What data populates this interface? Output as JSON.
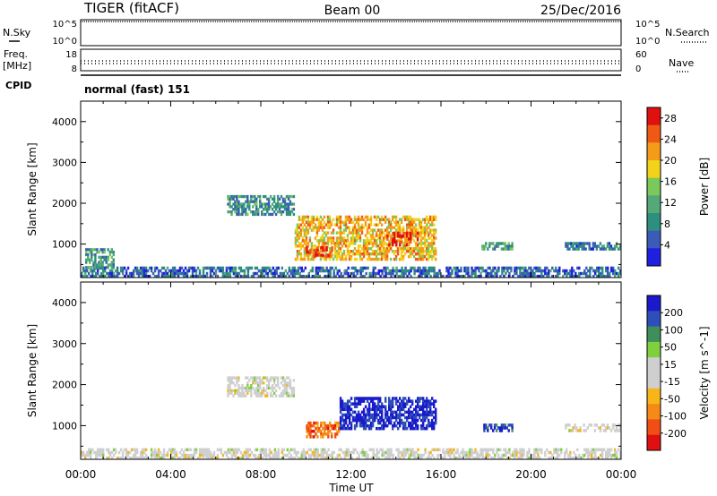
{
  "header": {
    "radar": "TIGER (fitACF)",
    "beam": "Beam 00",
    "date": "25/Dec/2016"
  },
  "side_labels": {
    "nsky": "N.Sky",
    "nsearch": "N.Search",
    "freq": "Freq.",
    "freq_unit": "[MHz]",
    "nave": "Nave",
    "cpid": "CPID",
    "cpid_value": "normal (fast) 151"
  },
  "small_ticks": {
    "noise_left": [
      "10^5",
      "10^0"
    ],
    "noise_right": [
      "10^5",
      "10^0"
    ],
    "freq_left": [
      "18",
      "8"
    ],
    "nave_right": [
      "60",
      "0"
    ]
  },
  "colors": {
    "power_scale": [
      "#1f1fe0",
      "#3b5bb8",
      "#2f8f7f",
      "#55a877",
      "#7bc95a",
      "#f2d21b",
      "#f59b1a",
      "#ee5a16",
      "#e01010"
    ],
    "velocity_scale": [
      "#e01010",
      "#f04e15",
      "#f58a16",
      "#f7b51a",
      "#cfcfcf",
      "#cfcfcf",
      "#7fcf3e",
      "#3f8f5a",
      "#2e4fb8",
      "#1a1acc"
    ]
  },
  "chart_data": [
    {
      "type": "heatmap",
      "name": "Power",
      "ylabel": "Slant Range [km]",
      "xlabel": "",
      "x_ticks": [
        "00:00",
        "04:00",
        "08:00",
        "12:00",
        "16:00",
        "20:00",
        "00:00"
      ],
      "y_ticks": [
        "1000",
        "2000",
        "3000",
        "4000"
      ],
      "xlim_hours": [
        0,
        24
      ],
      "ylim_km": [
        180,
        4500
      ],
      "colorbar_label": "Power [dB]",
      "colorbar_ticks": [
        "4",
        "8",
        "12",
        "16",
        "20",
        "24",
        "28"
      ],
      "colorbar_range": [
        0,
        30
      ],
      "echo_regions": [
        {
          "t": [
            0,
            24
          ],
          "r": [
            180,
            450
          ],
          "value": 6
        },
        {
          "t": [
            0.2,
            1.5
          ],
          "r": [
            400,
            900
          ],
          "value": 10
        },
        {
          "t": [
            6.5,
            9.5
          ],
          "r": [
            1700,
            2200
          ],
          "value": 9
        },
        {
          "t": [
            9.5,
            15.8
          ],
          "r": [
            600,
            1700
          ],
          "value": 20
        },
        {
          "t": [
            10,
            11.2
          ],
          "r": [
            700,
            950
          ],
          "value": 27
        },
        {
          "t": [
            13.5,
            15
          ],
          "r": [
            950,
            1300
          ],
          "value": 26
        },
        {
          "t": [
            17.8,
            19.2
          ],
          "r": [
            850,
            1050
          ],
          "value": 10
        },
        {
          "t": [
            21.5,
            24
          ],
          "r": [
            850,
            1050
          ],
          "value": 7
        }
      ]
    },
    {
      "type": "heatmap",
      "name": "Velocity",
      "ylabel": "Slant Range [km]",
      "xlabel": "Time UT",
      "x_ticks": [
        "00:00",
        "04:00",
        "08:00",
        "12:00",
        "16:00",
        "20:00",
        "00:00"
      ],
      "y_ticks": [
        "1000",
        "2000",
        "3000",
        "4000"
      ],
      "xlim_hours": [
        0,
        24
      ],
      "ylim_km": [
        180,
        4500
      ],
      "colorbar_label": "Velocity [m s^-1]",
      "colorbar_ticks": [
        "200",
        "100",
        "50",
        "15",
        "-15",
        "-50",
        "-100",
        "-200"
      ],
      "colorbar_range": [
        -250,
        250
      ],
      "echo_regions": [
        {
          "t": [
            0,
            24
          ],
          "r": [
            180,
            450
          ],
          "value": 0
        },
        {
          "t": [
            6.5,
            9.5
          ],
          "r": [
            1700,
            2200
          ],
          "value": 0
        },
        {
          "t": [
            10,
            11.5
          ],
          "r": [
            700,
            1100
          ],
          "value": -150
        },
        {
          "t": [
            11.5,
            15.8
          ],
          "r": [
            900,
            1700
          ],
          "value": 220
        },
        {
          "t": [
            17.8,
            19.2
          ],
          "r": [
            850,
            1050
          ],
          "value": 180
        },
        {
          "t": [
            21.5,
            24
          ],
          "r": [
            850,
            1050
          ],
          "value": 0
        }
      ]
    }
  ]
}
